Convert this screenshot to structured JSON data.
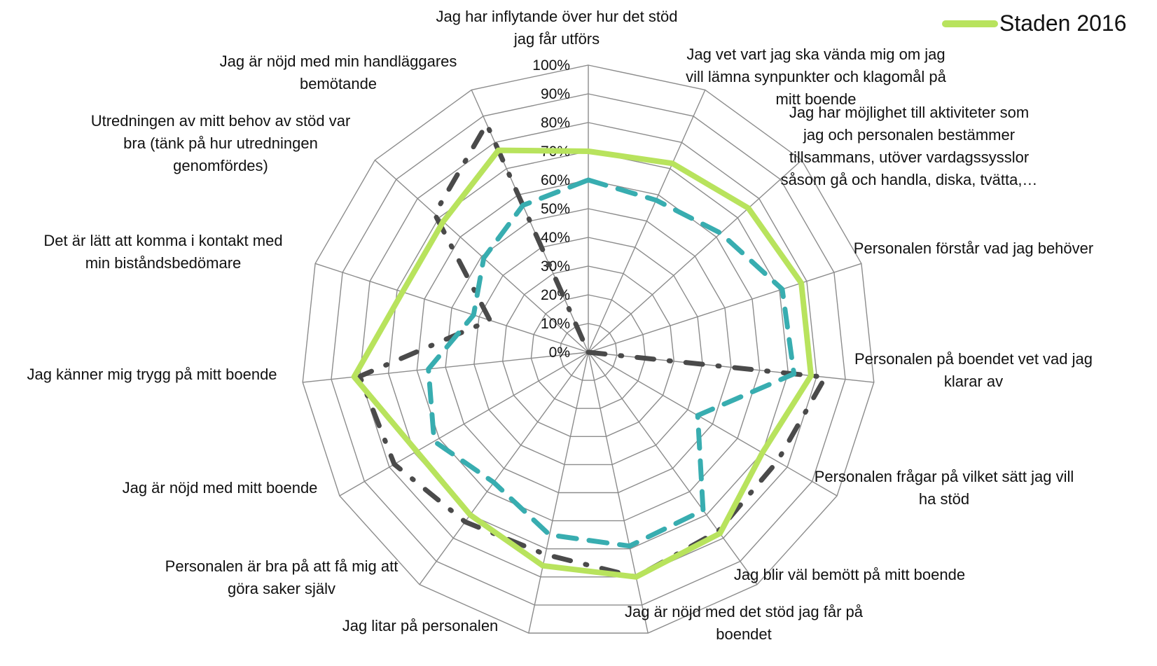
{
  "chart_data": {
    "type": "radar",
    "categories": [
      "Jag har inflytande över hur det stöd jag får utförs",
      "Jag vet vart jag ska vända mig om jag vill lämna synpunkter och klagomål på mitt boende",
      "Jag har möjlighet till aktiviteter som jag och personalen bestämmer tillsammans, utöver vardagssysslor såsom gå och handla, diska, tvätta,…",
      "Personalen förstår vad jag behöver",
      "Personalen på boendet vet vad jag klarar av",
      "Personalen frågar på vilket sätt jag vill ha stöd",
      "Jag blir väl bemött på mitt boende",
      "Jag är nöjd med det stöd jag får på boendet",
      "Jag litar på personalen",
      "Personalen är bra på att få mig att göra saker själv",
      "Jag är nöjd med mitt boende",
      "Jag känner mig trygg på mitt boende",
      "Det är lätt att komma i kontakt med min biståndsbedömare",
      "Utredningen av mitt behov av stöd var bra (tänk på hur utredningen genomfördes)",
      "Jag är nöjd med min handläggares bemötande"
    ],
    "tick_labels": [
      "0%",
      "10%",
      "20%",
      "30%",
      "40%",
      "50%",
      "60%",
      "70%",
      "80%",
      "90%",
      "100%"
    ],
    "rmax": 100,
    "series": [
      {
        "name": "Staden 2016",
        "color": "#b8e35d",
        "style": "solid",
        "values": [
          70,
          72,
          75,
          78,
          78,
          70,
          78,
          80,
          76,
          70,
          69,
          82,
          68,
          68,
          77
        ]
      },
      {
        "name": "",
        "color": "#38adb0",
        "style": "dashed",
        "values": [
          60,
          58,
          62,
          71,
          72,
          44,
          68,
          69,
          65,
          56,
          62,
          56,
          42,
          49,
          56
        ]
      },
      {
        "name": "",
        "color": "#4a4a4a",
        "style": "dash-dot",
        "values": [
          0,
          0,
          0,
          0,
          83,
          76,
          77,
          80,
          72,
          73,
          78,
          80,
          36,
          72,
          87
        ]
      }
    ],
    "legend_position": "top-right",
    "grid": true
  }
}
